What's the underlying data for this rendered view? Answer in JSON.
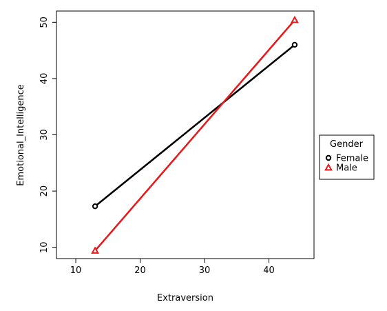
{
  "chart_data": {
    "type": "line",
    "xlabel": "Extraversion",
    "ylabel": "Emotional_Intelligence",
    "xlim": [
      7,
      47
    ],
    "ylim": [
      8,
      52
    ],
    "x_ticks": [
      10,
      20,
      30,
      40
    ],
    "y_ticks": [
      10,
      20,
      30,
      40,
      50
    ],
    "grid": false,
    "legend": {
      "title": "Gender",
      "placement": "right"
    },
    "series": [
      {
        "name": "Female",
        "color": "#000000",
        "marker": "circle",
        "points": [
          {
            "x": 13,
            "y": 17.3
          },
          {
            "x": 44,
            "y": 46.0
          }
        ]
      },
      {
        "name": "Male",
        "color": "#e41a1c",
        "marker": "triangle",
        "points": [
          {
            "x": 13,
            "y": 9.4
          },
          {
            "x": 44,
            "y": 50.4
          }
        ]
      }
    ]
  }
}
